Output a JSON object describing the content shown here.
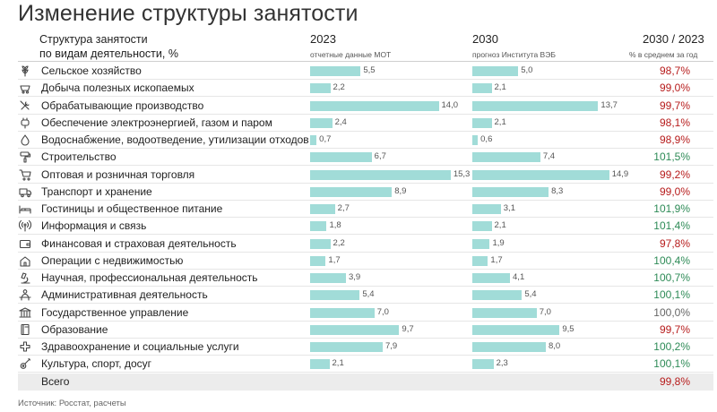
{
  "title": "Изменение структуры занятости",
  "header": {
    "category_line1": "Структура занятости",
    "category_line2": "по видам деятельности, %",
    "year1": "2023",
    "year1_sub": "отчетные данные МОТ",
    "year2": "2030",
    "year2_sub": "прогноз Института ВЭБ",
    "ratio": "2030 / 2023",
    "ratio_sub": "% в среднем за год"
  },
  "source": "Источник: Росстат, расчеты",
  "colors": {
    "bar": "#a1dcd8",
    "ratio_below_100": "#b71c1c",
    "ratio_above_100": "#2e8b57",
    "ratio_equal_100": "#666666",
    "ratio_total": "#b71c1c"
  },
  "chart_data": {
    "type": "bar",
    "title": "Изменение структуры занятости",
    "units": "%",
    "categories": [
      "Сельское хозяйство",
      "Добыча полезных ископаемых",
      "Обрабатывающие производство",
      "Обеспечение электроэнергией, газом и паром",
      "Водоснабжение, водоотведение, утилизации отходов",
      "Строительство",
      "Оптовая и розничная торговля",
      "Транспорт и хранение",
      "Гостиницы и общественное питание",
      "Информация и связь",
      "Финансовая и страховая деятельность",
      "Операции с недвижимостью",
      "Научная, профессиональная деятельность",
      "Административная деятельность",
      "Государственное управление",
      "Образование",
      "Здравоохранение и социальные услуги",
      "Культура, спорт, досуг"
    ],
    "icons": [
      "wheat-icon",
      "mining-cart-icon",
      "tools-icon",
      "power-plug-icon",
      "water-drop-icon",
      "paint-roller-icon",
      "shopping-cart-icon",
      "truck-icon",
      "hotel-bed-icon",
      "antenna-icon",
      "wallet-icon",
      "house-icon",
      "microscope-icon",
      "person-desk-icon",
      "government-building-icon",
      "book-icon",
      "medical-cross-icon",
      "guitar-icon"
    ],
    "series": [
      {
        "name": "2023",
        "values": [
          5.5,
          2.2,
          14.0,
          2.4,
          0.7,
          6.7,
          15.3,
          8.9,
          2.7,
          1.8,
          2.2,
          1.7,
          3.9,
          5.4,
          7.0,
          9.7,
          7.9,
          2.1
        ],
        "labels": [
          "5,5",
          "2,2",
          "14,0",
          "2,4",
          "0,7",
          "6,7",
          "15,3",
          "8,9",
          "2,7",
          "1,8",
          "2,2",
          "1,7",
          "3,9",
          "5,4",
          "7,0",
          "9,7",
          "7,9",
          "2,1"
        ]
      },
      {
        "name": "2030",
        "values": [
          5.0,
          2.1,
          13.7,
          2.1,
          0.6,
          7.4,
          14.9,
          8.3,
          3.1,
          2.1,
          1.9,
          1.7,
          4.1,
          5.4,
          7.0,
          9.5,
          8.0,
          2.3
        ],
        "labels": [
          "5,0",
          "2,1",
          "13,7",
          "2,1",
          "0,6",
          "7,4",
          "14,9",
          "8,3",
          "3,1",
          "2,1",
          "1,9",
          "1,7",
          "4,1",
          "5,4",
          "7,0",
          "9,5",
          "8,0",
          "2,3"
        ]
      }
    ],
    "ratio": {
      "name": "2030 / 2023",
      "values": [
        98.7,
        99.0,
        99.7,
        98.1,
        98.9,
        101.5,
        99.2,
        99.0,
        101.9,
        101.4,
        97.8,
        100.4,
        100.7,
        100.1,
        100.0,
        99.7,
        100.2,
        100.1
      ],
      "labels": [
        "98,7%",
        "99,0%",
        "99,7%",
        "98,1%",
        "98,9%",
        "101,5%",
        "99,2%",
        "99,0%",
        "101,9%",
        "101,4%",
        "97,8%",
        "100,4%",
        "100,7%",
        "100,1%",
        "100,0%",
        "99,7%",
        "100,2%",
        "100,1%"
      ]
    },
    "total": {
      "label": "Всего",
      "ratio": 99.8,
      "ratio_label": "99,8%"
    }
  }
}
